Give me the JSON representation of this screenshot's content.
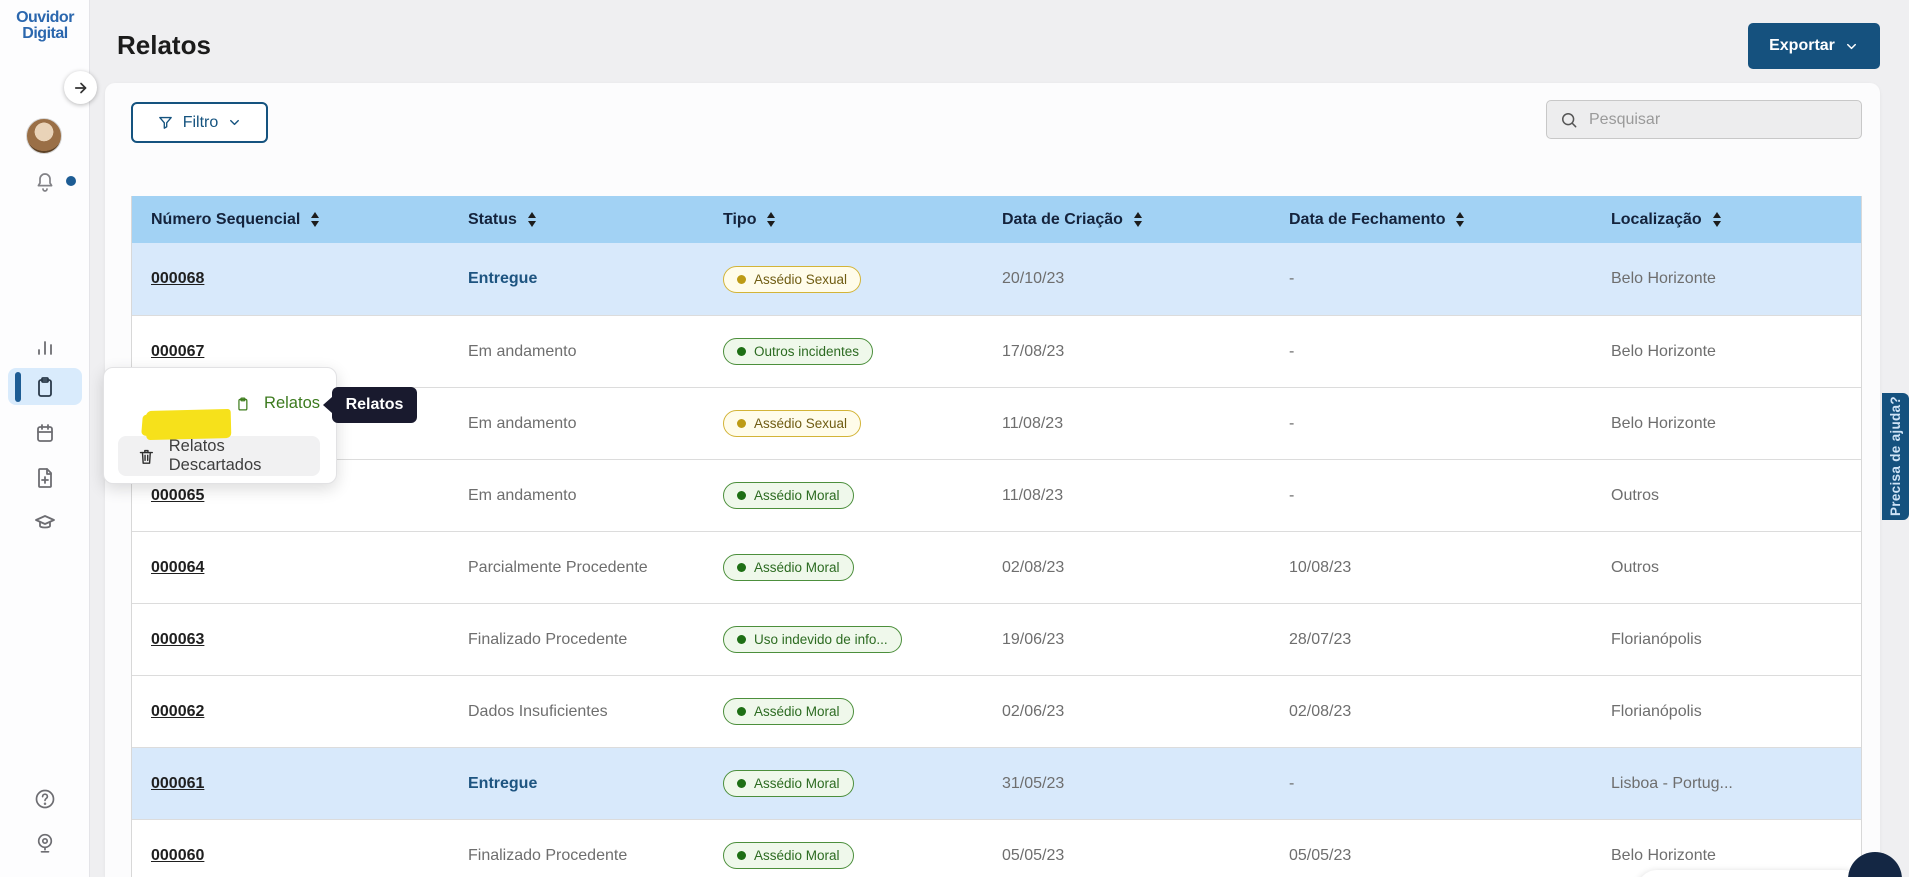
{
  "logo": {
    "line1": "Ouvidor",
    "line2": "Digital"
  },
  "page": {
    "title": "Relatos"
  },
  "header": {
    "export_label": "Exportar"
  },
  "toolbar": {
    "filter_label": "Filtro",
    "search_placeholder": "Pesquisar",
    "search_value": ""
  },
  "sidebar": {
    "icons": [
      "analytics-icon",
      "reports-icon",
      "calendar-icon",
      "new-report-icon",
      "education-icon",
      "help-icon",
      "webcam-icon",
      "bell-icon"
    ],
    "active_item": "reports"
  },
  "flyout": {
    "items": [
      {
        "label": "Relatos",
        "icon": "clipboard-icon",
        "highlighted": true
      },
      {
        "label": "Relatos Descartados",
        "icon": "trash-icon",
        "highlighted": false
      }
    ]
  },
  "tooltip": {
    "label": "Relatos"
  },
  "help_tab": {
    "label": "Precisa de ajuda?"
  },
  "table": {
    "columns": [
      "Número Sequencial",
      "Status",
      "Tipo",
      "Data de Criação",
      "Data de Fechamento",
      "Localização"
    ],
    "rows": [
      {
        "numero": "000068",
        "status": "Entregue",
        "status_emphasis": true,
        "tipo": "Assédio Sexual",
        "tipo_color": "yellow",
        "criacao": "20/10/23",
        "fechamento": "-",
        "localizacao": "Belo Horizonte",
        "highlight": true
      },
      {
        "numero": "000067",
        "status": "Em andamento",
        "status_emphasis": false,
        "tipo": "Outros incidentes",
        "tipo_color": "green",
        "criacao": "17/08/23",
        "fechamento": "-",
        "localizacao": "Belo Horizonte",
        "highlight": false
      },
      {
        "numero": "",
        "status": "Em andamento",
        "status_emphasis": false,
        "tipo": "Assédio Sexual",
        "tipo_color": "yellow",
        "criacao": "11/08/23",
        "fechamento": "-",
        "localizacao": "Belo Horizonte",
        "highlight": false
      },
      {
        "numero": "000065",
        "status": "Em andamento",
        "status_emphasis": false,
        "tipo": "Assédio Moral",
        "tipo_color": "green",
        "criacao": "11/08/23",
        "fechamento": "-",
        "localizacao": "Outros",
        "highlight": false
      },
      {
        "numero": "000064",
        "status": "Parcialmente Procedente",
        "status_emphasis": false,
        "tipo": "Assédio Moral",
        "tipo_color": "green",
        "criacao": "02/08/23",
        "fechamento": "10/08/23",
        "localizacao": "Outros",
        "highlight": false
      },
      {
        "numero": "000063",
        "status": "Finalizado Procedente",
        "status_emphasis": false,
        "tipo": "Uso indevido de info...",
        "tipo_color": "green",
        "criacao": "19/06/23",
        "fechamento": "28/07/23",
        "localizacao": "Florianópolis",
        "highlight": false
      },
      {
        "numero": "000062",
        "status": "Dados Insuficientes",
        "status_emphasis": false,
        "tipo": "Assédio Moral",
        "tipo_color": "green",
        "criacao": "02/06/23",
        "fechamento": "02/08/23",
        "localizacao": "Florianópolis",
        "highlight": false
      },
      {
        "numero": "000061",
        "status": "Entregue",
        "status_emphasis": true,
        "tipo": "Assédio Moral",
        "tipo_color": "green",
        "criacao": "31/05/23",
        "fechamento": "-",
        "localizacao": "Lisboa - Portug...",
        "highlight": true
      },
      {
        "numero": "000060",
        "status": "Finalizado Procedente",
        "status_emphasis": false,
        "tipo": "Assédio Moral",
        "tipo_color": "green",
        "criacao": "05/05/23",
        "fechamento": "05/05/23",
        "localizacao": "Belo Horizonte",
        "highlight": false
      }
    ]
  },
  "colors": {
    "primary_blue": "#15517e",
    "header_blue": "#a2d2f4",
    "row_highlight": "#d8e9fb",
    "marker_yellow": "#f6e11b",
    "badge_yellow_border": "#d3b438",
    "badge_green_border": "#4c8f3c",
    "status_blue": "#1d5480",
    "logo_blue": "#2b67ae",
    "tooltip_bg": "#191a2e"
  }
}
